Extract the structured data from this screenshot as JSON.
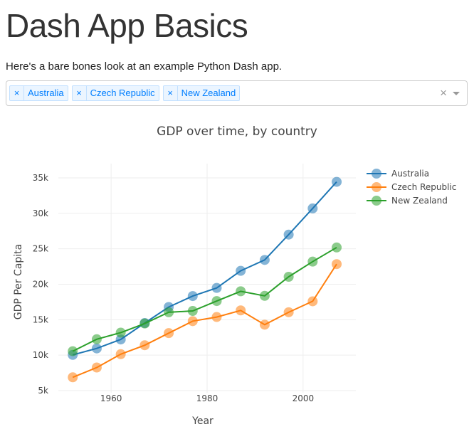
{
  "header": {
    "title": "Dash App Basics",
    "subtitle": "Here's a bare bones look at an example Python Dash app."
  },
  "dropdown": {
    "selected": [
      "Australia",
      "Czech Republic",
      "New Zealand"
    ],
    "remove_glyph": "×",
    "clear_glyph": "×"
  },
  "chart_data": {
    "type": "line",
    "title": "GDP over time, by country",
    "xlabel": "Year",
    "ylabel": "GDP Per Capita",
    "x": [
      1952,
      1957,
      1962,
      1967,
      1972,
      1977,
      1982,
      1987,
      1992,
      1997,
      2002,
      2007
    ],
    "xlim": [
      1949,
      2011
    ],
    "ylim": [
      4700,
      37000
    ],
    "xticks": [
      1960,
      1980,
      2000
    ],
    "xtick_labels": [
      "1960",
      "1980",
      "2000"
    ],
    "yticks": [
      5000,
      10000,
      15000,
      20000,
      25000,
      30000,
      35000
    ],
    "ytick_labels": [
      "5k",
      "10k",
      "15k",
      "20k",
      "25k",
      "30k",
      "35k"
    ],
    "grid": true,
    "legend_position": "top-right",
    "series": [
      {
        "name": "Australia",
        "color": "#1f77b4",
        "values": [
          10040,
          10950,
          12217,
          14526,
          16789,
          18334,
          19477,
          21889,
          23425,
          26998,
          30688,
          34435
        ]
      },
      {
        "name": "Czech Republic",
        "color": "#ff7f0e",
        "values": [
          6876,
          8256,
          10137,
          11399,
          13108,
          14800,
          15377,
          16310,
          14297,
          16049,
          17596,
          22833
        ]
      },
      {
        "name": "New Zealand",
        "color": "#2ca02c",
        "values": [
          10557,
          12247,
          13176,
          14464,
          16046,
          16234,
          17633,
          19007,
          18363,
          21050,
          23190,
          25185
        ]
      }
    ]
  }
}
